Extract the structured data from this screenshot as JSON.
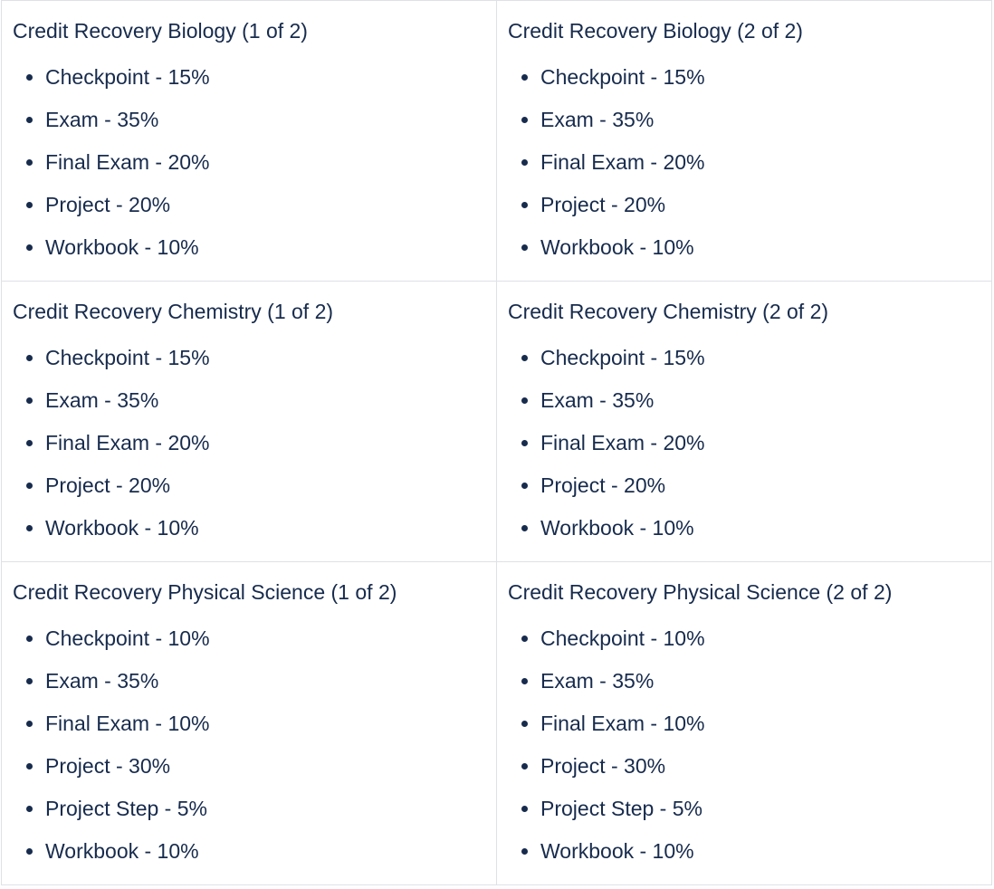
{
  "table": {
    "rows": [
      {
        "cells": [
          {
            "title": "Credit Recovery Biology (1 of 2)",
            "items": [
              "Checkpoint - 15%",
              "Exam - 35%",
              "Final Exam - 20%",
              "Project - 20%",
              "Workbook - 10%"
            ]
          },
          {
            "title": "Credit Recovery Biology (2 of 2)",
            "items": [
              "Checkpoint - 15%",
              "Exam - 35%",
              "Final Exam - 20%",
              "Project - 20%",
              "Workbook - 10%"
            ]
          }
        ]
      },
      {
        "cells": [
          {
            "title": "Credit Recovery Chemistry (1 of 2)",
            "items": [
              "Checkpoint - 15%",
              "Exam - 35%",
              "Final Exam - 20%",
              "Project - 20%",
              "Workbook - 10%"
            ]
          },
          {
            "title": "Credit Recovery Chemistry (2 of 2)",
            "items": [
              "Checkpoint - 15%",
              "Exam - 35%",
              "Final Exam - 20%",
              "Project - 20%",
              "Workbook - 10%"
            ]
          }
        ]
      },
      {
        "cells": [
          {
            "title": "Credit Recovery Physical Science (1 of 2)",
            "items": [
              "Checkpoint - 10%",
              "Exam - 35%",
              "Final Exam - 10%",
              "Project - 30%",
              "Project Step - 5%",
              "Workbook - 10%"
            ]
          },
          {
            "title": "Credit Recovery Physical Science (2 of 2)",
            "items": [
              "Checkpoint - 10%",
              "Exam - 35%",
              "Final Exam - 10%",
              "Project - 30%",
              "Project Step - 5%",
              "Workbook - 10%"
            ]
          }
        ]
      }
    ]
  }
}
